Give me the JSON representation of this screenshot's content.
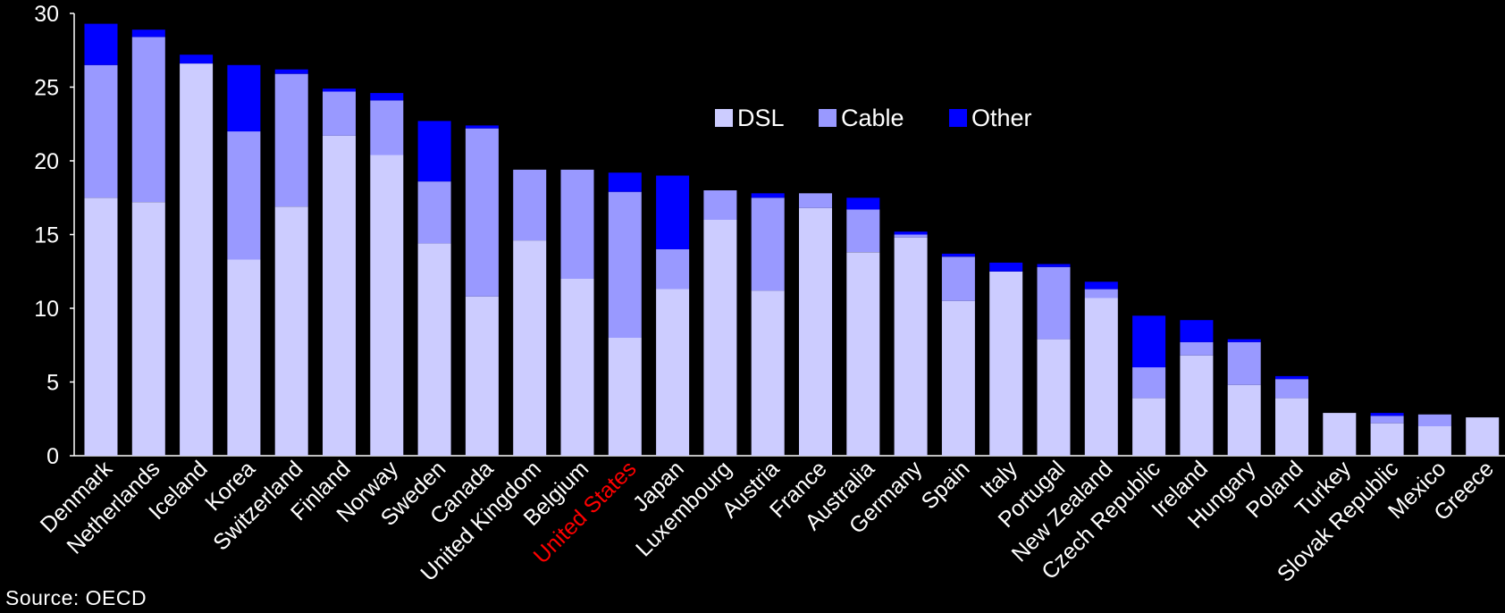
{
  "chart_data": {
    "type": "bar",
    "stacked": true,
    "title": "",
    "xlabel": "",
    "ylabel": "",
    "ylim": [
      0,
      30
    ],
    "yticks": [
      0,
      5,
      10,
      15,
      20,
      25,
      30
    ],
    "grid": false,
    "legend_position": "top-center",
    "categories": [
      "Denmark",
      "Netherlands",
      "Iceland",
      "Korea",
      "Switzerland",
      "Finland",
      "Norway",
      "Sweden",
      "Canada",
      "United Kingdom",
      "Belgium",
      "United States",
      "Japan",
      "Luxembourg",
      "Austria",
      "France",
      "Australia",
      "Germany",
      "Spain",
      "Italy",
      "Portugal",
      "New Zealand",
      "Czech Republic",
      "Ireland",
      "Hungary",
      "Poland",
      "Turkey",
      "Slovak Republic",
      "Mexico",
      "Greece"
    ],
    "highlight_category": "United States",
    "highlight_color": "#ff0000",
    "series": [
      {
        "name": "DSL",
        "color": "#ccccff",
        "values": [
          17.5,
          17.2,
          26.6,
          13.3,
          16.9,
          21.7,
          20.4,
          14.4,
          10.8,
          14.6,
          12.0,
          8.0,
          11.3,
          16.0,
          11.2,
          16.8,
          13.8,
          14.8,
          10.5,
          12.5,
          7.9,
          10.7,
          3.9,
          6.8,
          4.8,
          3.9,
          2.9,
          2.2,
          2.0,
          2.6
        ]
      },
      {
        "name": "Cable",
        "color": "#9999ff",
        "values": [
          9.0,
          11.2,
          0.0,
          8.7,
          9.0,
          3.0,
          3.7,
          4.2,
          11.4,
          4.8,
          7.4,
          9.9,
          2.7,
          2.0,
          6.3,
          1.0,
          2.9,
          0.2,
          3.0,
          0.0,
          4.9,
          0.6,
          2.1,
          0.9,
          2.9,
          1.3,
          0.0,
          0.5,
          0.8,
          0.0
        ]
      },
      {
        "name": "Other",
        "color": "#0000ff",
        "values": [
          2.8,
          0.5,
          0.6,
          4.5,
          0.3,
          0.2,
          0.5,
          4.1,
          0.2,
          0.0,
          0.0,
          1.3,
          5.0,
          0.0,
          0.3,
          0.0,
          0.8,
          0.2,
          0.2,
          0.6,
          0.2,
          0.5,
          3.5,
          1.5,
          0.2,
          0.2,
          0.0,
          0.2,
          0.0,
          0.0
        ]
      }
    ]
  },
  "footer": {
    "source": "Source: OECD"
  },
  "colors": {
    "background": "#000000",
    "axis": "#ffffff",
    "text": "#ffffff"
  }
}
